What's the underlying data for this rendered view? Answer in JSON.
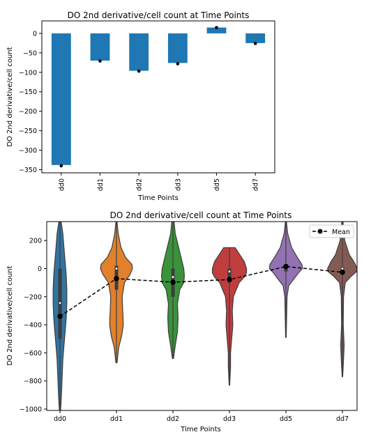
{
  "chart_data": [
    {
      "type": "bar",
      "title": "DO 2nd derivative/cell count at Time Points",
      "xlabel": "Time Points",
      "ylabel": "DO 2nd derivative/cell count",
      "categories": [
        "dd0",
        "dd1",
        "dd2",
        "dd3",
        "dd5",
        "dd7"
      ],
      "values": [
        -338,
        -70,
        -96,
        -76,
        15,
        -25
      ],
      "markers": [
        -340,
        -71,
        -97,
        -78,
        15,
        -26
      ],
      "yticks": [
        0,
        -50,
        -100,
        -150,
        -200,
        -250,
        -300,
        -350
      ],
      "ylim": [
        -358,
        32
      ],
      "bar_color": "#1f77b4",
      "marker_color": "#000000"
    },
    {
      "type": "violin",
      "title": "DO 2nd derivative/cell count at Time Points",
      "xlabel": "Time Points",
      "ylabel": "DO 2nd derivative/cell count",
      "categories": [
        "dd0",
        "dd1",
        "dd2",
        "dd3",
        "dd5",
        "dd7"
      ],
      "yticks": [
        200,
        0,
        -200,
        -400,
        -600,
        -800,
        -1000
      ],
      "ylim": [
        -1010,
        335
      ],
      "legend": {
        "label": "Mean",
        "position": "top-right"
      },
      "mean_values": [
        -340,
        -71,
        -97,
        -78,
        15,
        -26
      ],
      "series": [
        {
          "name": "dd0",
          "color": "#3274a1",
          "min": -1010,
          "max": 335,
          "q1": -500,
          "q3": 0,
          "median": -245,
          "profile": [
            [
              335,
              0.02
            ],
            [
              250,
              0.05
            ],
            [
              150,
              0.07
            ],
            [
              50,
              0.09
            ],
            [
              -50,
              0.11
            ],
            [
              -150,
              0.12
            ],
            [
              -250,
              0.12
            ],
            [
              -350,
              0.11
            ],
            [
              -450,
              0.09
            ],
            [
              -550,
              0.07
            ],
            [
              -650,
              0.05
            ],
            [
              -750,
              0.04
            ],
            [
              -850,
              0.03
            ],
            [
              -950,
              0.02
            ],
            [
              -1010,
              0.01
            ]
          ]
        },
        {
          "name": "dd1",
          "color": "#e1812c",
          "min": -670,
          "max": 330,
          "q1": -150,
          "q3": 20,
          "median": 0,
          "profile": [
            [
              330,
              0.01
            ],
            [
              250,
              0.03
            ],
            [
              150,
              0.08
            ],
            [
              80,
              0.16
            ],
            [
              30,
              0.27
            ],
            [
              0,
              0.28
            ],
            [
              -40,
              0.24
            ],
            [
              -100,
              0.14
            ],
            [
              -200,
              0.1
            ],
            [
              -300,
              0.11
            ],
            [
              -400,
              0.12
            ],
            [
              -480,
              0.09
            ],
            [
              -560,
              0.04
            ],
            [
              -670,
              0.01
            ]
          ]
        },
        {
          "name": "dd2",
          "color": "#3a923a",
          "min": -640,
          "max": 335,
          "q1": -200,
          "q3": 0,
          "median": -60,
          "profile": [
            [
              335,
              0.02
            ],
            [
              250,
              0.04
            ],
            [
              150,
              0.1
            ],
            [
              50,
              0.16
            ],
            [
              0,
              0.19
            ],
            [
              -50,
              0.2
            ],
            [
              -100,
              0.19
            ],
            [
              -150,
              0.12
            ],
            [
              -250,
              0.08
            ],
            [
              -350,
              0.09
            ],
            [
              -450,
              0.08
            ],
            [
              -550,
              0.04
            ],
            [
              -640,
              0.01
            ]
          ]
        },
        {
          "name": "dd3",
          "color": "#c03d3e",
          "min": -830,
          "max": 150,
          "q1": -100,
          "q3": 0,
          "median": -20,
          "profile": [
            [
              150,
              0.1
            ],
            [
              100,
              0.18
            ],
            [
              50,
              0.26
            ],
            [
              0,
              0.3
            ],
            [
              -30,
              0.3
            ],
            [
              -60,
              0.26
            ],
            [
              -100,
              0.17
            ],
            [
              -200,
              0.07
            ],
            [
              -300,
              0.05
            ],
            [
              -400,
              0.06
            ],
            [
              -500,
              0.04
            ],
            [
              -600,
              0.02
            ],
            [
              -700,
              0.02
            ],
            [
              -830,
              0.005
            ]
          ]
        },
        {
          "name": "dd5",
          "color": "#9372b2",
          "min": -490,
          "max": 330,
          "q1": -20,
          "q3": 30,
          "median": 10,
          "profile": [
            [
              330,
              0.01
            ],
            [
              250,
              0.03
            ],
            [
              150,
              0.1
            ],
            [
              80,
              0.2
            ],
            [
              30,
              0.28
            ],
            [
              0,
              0.29
            ],
            [
              -30,
              0.22
            ],
            [
              -80,
              0.13
            ],
            [
              -120,
              0.05
            ],
            [
              -200,
              0.02
            ],
            [
              -300,
              0.015
            ],
            [
              -400,
              0.01
            ],
            [
              -490,
              0.005
            ]
          ]
        },
        {
          "name": "dd7",
          "color": "#845b53",
          "min": -770,
          "max": 335,
          "q1": -10,
          "q3": 10,
          "median": 0,
          "profile": [
            [
              335,
              0.01
            ],
            [
              200,
              0.04
            ],
            [
              100,
              0.12
            ],
            [
              50,
              0.2
            ],
            [
              0,
              0.26
            ],
            [
              -20,
              0.25
            ],
            [
              -60,
              0.14
            ],
            [
              -100,
              0.05
            ],
            [
              -200,
              0.02
            ],
            [
              -400,
              0.015
            ],
            [
              -550,
              0.03
            ],
            [
              -650,
              0.02
            ],
            [
              -770,
              0.005
            ]
          ]
        }
      ]
    }
  ]
}
